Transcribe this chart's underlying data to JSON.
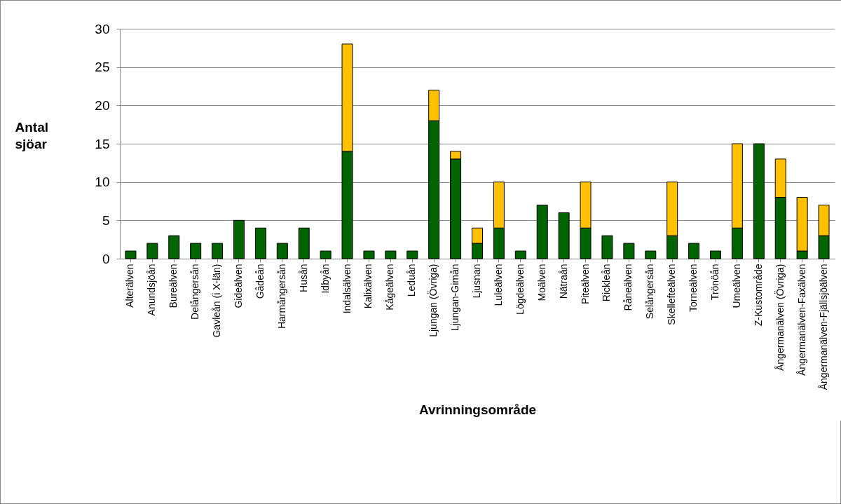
{
  "chart_data": {
    "type": "bar",
    "stacked": true,
    "xlabel": "Avrinningsområde",
    "ylabel": "Antal sjöar",
    "categories": [
      "Alterälven",
      "Anundsjöån",
      "Bureälven",
      "Delångersån",
      "Gavleån (i X-län)",
      "Gideälven",
      "Gådeån",
      "Harmångersån",
      "Husån",
      "Idbyån",
      "Indalsälven",
      "Kalixälven",
      "Kågeälven",
      "Leduån",
      "Ljungan (Övriga)",
      "Ljungan-Gimån",
      "Ljusnan",
      "Luleälven",
      "Lögdeälven",
      "Moälven",
      "Nätraån",
      "Piteälven",
      "Rickleån",
      "Råneälven",
      "Selångersån",
      "Skellefteälven",
      "Torneälven",
      "Trönöån",
      "Umeälven",
      "Z-Kustområde",
      "Ångermanälven (Övriga)",
      "Ångermanälven-Faxälven",
      "Ångermanälven-Fjällsjöälven"
    ],
    "series": [
      {
        "color": "#006400",
        "values": [
          1,
          2,
          3,
          2,
          2,
          5,
          4,
          2,
          4,
          1,
          14,
          1,
          1,
          1,
          18,
          13,
          2,
          4,
          1,
          7,
          6,
          4,
          3,
          2,
          1,
          3,
          2,
          1,
          4,
          15,
          8,
          1,
          3
        ]
      },
      {
        "color": "#ffc000",
        "values": [
          null,
          null,
          null,
          null,
          null,
          null,
          null,
          null,
          null,
          null,
          14,
          null,
          null,
          null,
          4,
          1,
          2,
          6,
          null,
          null,
          null,
          6,
          null,
          null,
          null,
          7,
          null,
          null,
          11,
          null,
          5,
          7,
          4
        ]
      }
    ],
    "ylim": [
      0,
      30
    ],
    "yticks": [
      0,
      5,
      10,
      15,
      20,
      25,
      30
    ],
    "grid": "y",
    "legend": false
  }
}
